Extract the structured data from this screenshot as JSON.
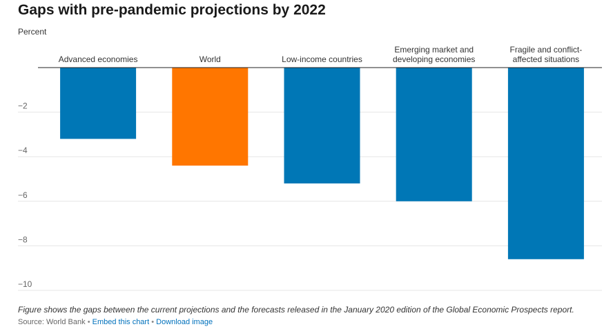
{
  "chart_data": {
    "type": "bar",
    "title": "Gaps with pre-pandemic projections by 2022",
    "ylabel": "Percent",
    "xlabel": "",
    "categories": [
      [
        "Advanced economies"
      ],
      [
        "World"
      ],
      [
        "Low-income countries"
      ],
      [
        "Emerging market and",
        "developing economies"
      ],
      [
        "Fragile and conflict-",
        "affected situations"
      ]
    ],
    "values": [
      -3.2,
      -4.4,
      -5.2,
      -6.0,
      -8.6
    ],
    "bar_colors": [
      "#0077b6",
      "#ff7600",
      "#0077b6",
      "#0077b6",
      "#0077b6"
    ],
    "ylim": [
      -10,
      0
    ],
    "yticks": [
      -2,
      -4,
      -6,
      -8,
      -10
    ],
    "ytick_labels": [
      "−2",
      "−4",
      "−6",
      "−8",
      "−10"
    ],
    "grid": true
  },
  "note": "Figure shows the gaps between the current projections and the forecasts released in the January 2020 edition of the Global Economic Prospects report.",
  "footer": {
    "source": "Source: World Bank",
    "separator": "•",
    "embed_link": "Embed this chart",
    "download_link": "Download image"
  }
}
